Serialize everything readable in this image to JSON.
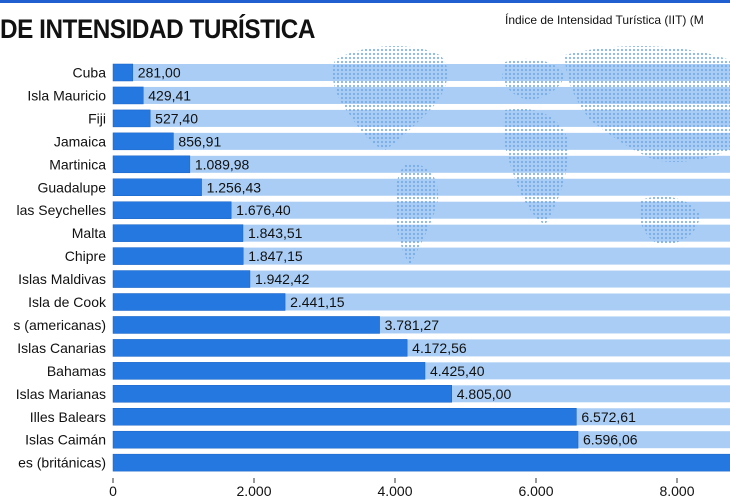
{
  "title": "DE INTENSIDAD TURÍSTICA",
  "subtitle": "Índice de Intensidad Turística (IIT) (M",
  "colors": {
    "bar": "#2478e0",
    "bar_edge": "#1a63c4",
    "row_band": "#a9cdf4",
    "map_dots": "#6fa7e6",
    "text": "#111111"
  },
  "chart_data": {
    "type": "bar",
    "orientation": "horizontal",
    "categories": [
      "Cuba",
      "Isla Mauricio",
      "Fiji",
      "Jamaica",
      "Martinica",
      "Guadalupe",
      "las Seychelles",
      "Malta",
      "Chipre",
      "Islas Maldivas",
      "Isla de Cook",
      "s (americanas)",
      "Islas Canarias",
      "Bahamas",
      "Islas Marianas",
      "Illes Balears",
      "Islas Caimán",
      "es (británicas)"
    ],
    "values": [
      281.0,
      429.41,
      527.4,
      856.91,
      1089.98,
      1256.43,
      1676.4,
      1843.51,
      1847.15,
      1942.42,
      2441.15,
      3781.27,
      4172.56,
      4425.4,
      4805.0,
      6572.61,
      6596.06,
      9000
    ],
    "value_labels": [
      "281,00",
      "429,41",
      "527,40",
      "856,91",
      "1.089,98",
      "1.256,43",
      "1.676,40",
      "1.843,51",
      "1.847,15",
      "1.942,42",
      "2.441,15",
      "3.781,27",
      "4.172,56",
      "4.425,40",
      "4.805,00",
      "6.572,61",
      "6.596,06",
      ""
    ],
    "xticks": [
      0,
      2000,
      4000,
      6000,
      8000
    ],
    "xtick_labels": [
      "0",
      "2.000",
      "4.000",
      "6.000",
      "8.000"
    ],
    "xlim": [
      0,
      9000
    ],
    "xlabel": "",
    "ylabel": "",
    "grid": false,
    "legend": "none"
  }
}
